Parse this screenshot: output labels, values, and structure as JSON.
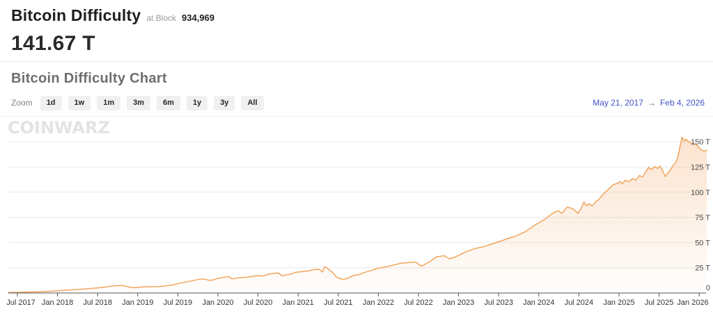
{
  "header": {
    "title": "Bitcoin Difficulty",
    "block_label": "at Block",
    "block_number": "934,969",
    "current_value": "141.67 T"
  },
  "chart_section": {
    "heading": "Bitcoin Difficulty Chart",
    "zoom_label": "Zoom",
    "zoom_buttons": [
      "1d",
      "1w",
      "1m",
      "3m",
      "6m",
      "1y",
      "3y",
      "All"
    ],
    "date_range": {
      "start": "May 21, 2017",
      "arrow": "→",
      "end": "Feb 4, 2026"
    },
    "watermark": "CoinWarz"
  },
  "colors": {
    "line": "#f0a55c",
    "area_fill": "#f1a15c",
    "date_link_blue": "#4053c6",
    "grid": "#e9e9e9",
    "axis": "#555555",
    "x_label": "#333333",
    "y_label": "#4a4a4a",
    "heading_gray": "#6e6e6e",
    "watermark_gray": "#e3e3e3"
  },
  "chart_data": {
    "type": "area",
    "title": "Bitcoin Difficulty Chart",
    "series_name": "Bitcoin Difficulty",
    "unit": "T",
    "legend": "none",
    "grid": "horizontal-only",
    "x_axis": {
      "start": "May 21, 2017",
      "end": "Feb 4, 2026",
      "months_span": 104.5,
      "ticks": [
        {
          "label": "Jul 2017",
          "m": 1.35
        },
        {
          "label": "Jan 2018",
          "m": 7.35
        },
        {
          "label": "Jul 2018",
          "m": 13.35
        },
        {
          "label": "Jan 2019",
          "m": 19.35
        },
        {
          "label": "Jul 2019",
          "m": 25.35
        },
        {
          "label": "Jan 2020",
          "m": 31.35
        },
        {
          "label": "Jul 2020",
          "m": 37.35
        },
        {
          "label": "Jan 2021",
          "m": 43.35
        },
        {
          "label": "Jul 2021",
          "m": 49.35
        },
        {
          "label": "Jan 2022",
          "m": 55.35
        },
        {
          "label": "Jul 2022",
          "m": 61.35
        },
        {
          "label": "Jan 2023",
          "m": 67.35
        },
        {
          "label": "Jul 2023",
          "m": 73.35
        },
        {
          "label": "Jan 2024",
          "m": 79.35
        },
        {
          "label": "Jul 2024",
          "m": 85.35
        },
        {
          "label": "Jan 2025",
          "m": 91.35
        },
        {
          "label": "Jul 2025",
          "m": 97.35
        },
        {
          "label": "Jan 2026",
          "m": 103.35
        }
      ]
    },
    "y_axis": {
      "lim": [
        0,
        162
      ],
      "ticks": [
        {
          "label": "0",
          "v": 0
        },
        {
          "label": "25 T",
          "v": 25
        },
        {
          "label": "50 T",
          "v": 50
        },
        {
          "label": "75 T",
          "v": 75
        },
        {
          "label": "100 T",
          "v": 100
        },
        {
          "label": "125 T",
          "v": 125
        },
        {
          "label": "150 T",
          "v": 150
        }
      ]
    },
    "points": [
      [
        0,
        0.6
      ],
      [
        1.6,
        0.7
      ],
      [
        3.4,
        1.0
      ],
      [
        5.0,
        1.3
      ],
      [
        6.5,
        1.8
      ],
      [
        7.5,
        2.3
      ],
      [
        9.1,
        3.0
      ],
      [
        10.7,
        3.6
      ],
      [
        12.2,
        4.4
      ],
      [
        13.4,
        5.1
      ],
      [
        14.5,
        5.9
      ],
      [
        15.3,
        6.7
      ],
      [
        16.1,
        7.2
      ],
      [
        16.9,
        7.4
      ],
      [
        17.6,
        6.8
      ],
      [
        18.2,
        5.6
      ],
      [
        18.7,
        5.2
      ],
      [
        19.5,
        5.7
      ],
      [
        20.5,
        6.1
      ],
      [
        21.5,
        6.3
      ],
      [
        22.6,
        6.4
      ],
      [
        23.6,
        7.0
      ],
      [
        24.6,
        8.0
      ],
      [
        25.5,
        9.5
      ],
      [
        26.5,
        10.8
      ],
      [
        27.5,
        12.2
      ],
      [
        28.5,
        13.6
      ],
      [
        29.3,
        13.9
      ],
      [
        30.0,
        12.6
      ],
      [
        30.6,
        12.9
      ],
      [
        31.2,
        14.2
      ],
      [
        32.1,
        15.4
      ],
      [
        32.9,
        16.4
      ],
      [
        33.5,
        14.0
      ],
      [
        34.1,
        14.8
      ],
      [
        34.9,
        15.3
      ],
      [
        35.8,
        15.8
      ],
      [
        36.5,
        16.5
      ],
      [
        37.2,
        17.2
      ],
      [
        38.1,
        16.9
      ],
      [
        38.9,
        18.6
      ],
      [
        39.7,
        19.5
      ],
      [
        40.4,
        19.9
      ],
      [
        41.0,
        16.9
      ],
      [
        41.6,
        18.1
      ],
      [
        42.3,
        18.7
      ],
      [
        43.0,
        20.6
      ],
      [
        43.9,
        21.2
      ],
      [
        44.7,
        21.7
      ],
      [
        45.4,
        22.7
      ],
      [
        46.1,
        23.5
      ],
      [
        46.6,
        23.2
      ],
      [
        47.0,
        20.7
      ],
      [
        47.3,
        26.0
      ],
      [
        47.6,
        25.3
      ],
      [
        48.1,
        22.5
      ],
      [
        48.6,
        19.8
      ],
      [
        49.1,
        15.8
      ],
      [
        49.7,
        14.0
      ],
      [
        50.3,
        13.8
      ],
      [
        50.9,
        15.0
      ],
      [
        51.6,
        17.4
      ],
      [
        52.4,
        18.2
      ],
      [
        53.1,
        19.9
      ],
      [
        53.8,
        21.5
      ],
      [
        54.4,
        22.5
      ],
      [
        55.0,
        24.1
      ],
      [
        56.9,
        26.6
      ],
      [
        58.6,
        29.4
      ],
      [
        60.9,
        30.8
      ],
      [
        61.8,
        26.6
      ],
      [
        63.2,
        31.7
      ],
      [
        64.0,
        35.8
      ],
      [
        65.2,
        37.0
      ],
      [
        66.0,
        34.0
      ],
      [
        66.9,
        35.8
      ],
      [
        68.3,
        40.4
      ],
      [
        69.7,
        43.9
      ],
      [
        71.2,
        46.1
      ],
      [
        72.8,
        49.6
      ],
      [
        74.3,
        53.0
      ],
      [
        75.9,
        56.5
      ],
      [
        77.4,
        61.0
      ],
      [
        78.8,
        67.5
      ],
      [
        80.1,
        72.5
      ],
      [
        81.5,
        79.4
      ],
      [
        82.2,
        81.7
      ],
      [
        82.8,
        79.0
      ],
      [
        83.6,
        85.2
      ],
      [
        84.3,
        84.0
      ],
      [
        84.8,
        81.7
      ],
      [
        85.2,
        79.0
      ],
      [
        85.7,
        84.0
      ],
      [
        86.1,
        90.3
      ],
      [
        86.5,
        86.5
      ],
      [
        86.9,
        88.6
      ],
      [
        87.3,
        86.2
      ],
      [
        87.8,
        90.2
      ],
      [
        88.2,
        92.2
      ],
      [
        88.6,
        95.0
      ],
      [
        89.1,
        99.0
      ],
      [
        89.8,
        103.0
      ],
      [
        90.5,
        107.5
      ],
      [
        91.0,
        108.5
      ],
      [
        91.5,
        110.5
      ],
      [
        91.9,
        108.5
      ],
      [
        92.3,
        112.0
      ],
      [
        92.8,
        110.5
      ],
      [
        93.4,
        113.5
      ],
      [
        93.9,
        112.0
      ],
      [
        94.4,
        116.5
      ],
      [
        94.9,
        115.0
      ],
      [
        95.4,
        121.0
      ],
      [
        95.8,
        124.5
      ],
      [
        96.2,
        122.5
      ],
      [
        96.7,
        125.5
      ],
      [
        97.1,
        123.5
      ],
      [
        97.5,
        126.0
      ],
      [
        97.9,
        121.0
      ],
      [
        98.3,
        115.5
      ],
      [
        98.7,
        119.0
      ],
      [
        99.1,
        123.0
      ],
      [
        99.5,
        127.0
      ],
      [
        99.9,
        130.0
      ],
      [
        100.2,
        136.0
      ],
      [
        100.5,
        146.0
      ],
      [
        100.8,
        154.5
      ],
      [
        101.1,
        151.0
      ],
      [
        101.4,
        152.5
      ],
      [
        101.7,
        150.5
      ],
      [
        102.1,
        149.0
      ],
      [
        102.5,
        148.0
      ],
      [
        102.9,
        147.0
      ],
      [
        103.2,
        145.5
      ],
      [
        103.5,
        143.0
      ],
      [
        103.8,
        141.5
      ],
      [
        104.1,
        140.8
      ],
      [
        104.5,
        141.7
      ]
    ]
  }
}
